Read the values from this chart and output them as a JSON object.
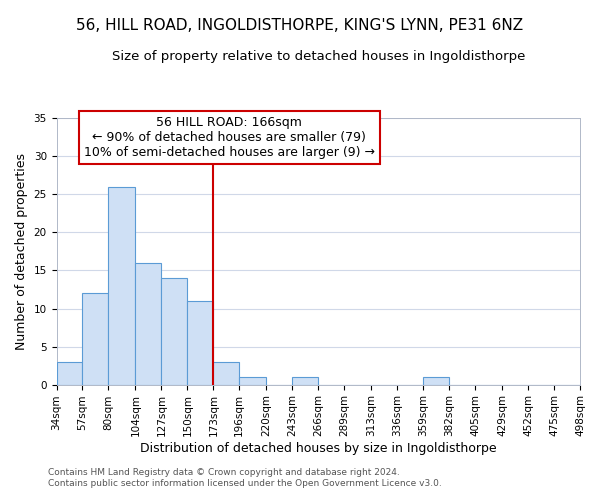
{
  "title": "56, HILL ROAD, INGOLDISTHORPE, KING'S LYNN, PE31 6NZ",
  "subtitle": "Size of property relative to detached houses in Ingoldisthorpe",
  "xlabel": "Distribution of detached houses by size in Ingoldisthorpe",
  "ylabel": "Number of detached properties",
  "bin_edges": [
    34,
    57,
    80,
    104,
    127,
    150,
    173,
    196,
    220,
    243,
    266,
    289,
    313,
    336,
    359,
    382,
    405,
    429,
    452,
    475,
    498
  ],
  "bin_labels": [
    "34sqm",
    "57sqm",
    "80sqm",
    "104sqm",
    "127sqm",
    "150sqm",
    "173sqm",
    "196sqm",
    "220sqm",
    "243sqm",
    "266sqm",
    "289sqm",
    "313sqm",
    "336sqm",
    "359sqm",
    "382sqm",
    "405sqm",
    "429sqm",
    "452sqm",
    "475sqm",
    "498sqm"
  ],
  "counts": [
    3,
    12,
    26,
    16,
    14,
    11,
    3,
    1,
    0,
    1,
    0,
    0,
    0,
    0,
    1,
    0,
    0,
    0,
    0,
    0
  ],
  "bar_color": "#cfe0f5",
  "bar_edge_color": "#5b9bd5",
  "vline_x": 173,
  "vline_color": "#cc0000",
  "ylim": [
    0,
    35
  ],
  "yticks": [
    0,
    5,
    10,
    15,
    20,
    25,
    30,
    35
  ],
  "annotation_title": "56 HILL ROAD: 166sqm",
  "annotation_line1": "← 90% of detached houses are smaller (79)",
  "annotation_line2": "10% of semi-detached houses are larger (9) →",
  "annotation_box_color": "#ffffff",
  "annotation_box_edge": "#cc0000",
  "footer1": "Contains HM Land Registry data © Crown copyright and database right 2024.",
  "footer2": "Contains public sector information licensed under the Open Government Licence v3.0.",
  "background_color": "#ffffff",
  "plot_bg_color": "#ffffff",
  "grid_color": "#d0d8e8",
  "title_fontsize": 11,
  "subtitle_fontsize": 9.5,
  "axis_label_fontsize": 9,
  "tick_fontsize": 7.5,
  "annotation_fontsize": 9
}
